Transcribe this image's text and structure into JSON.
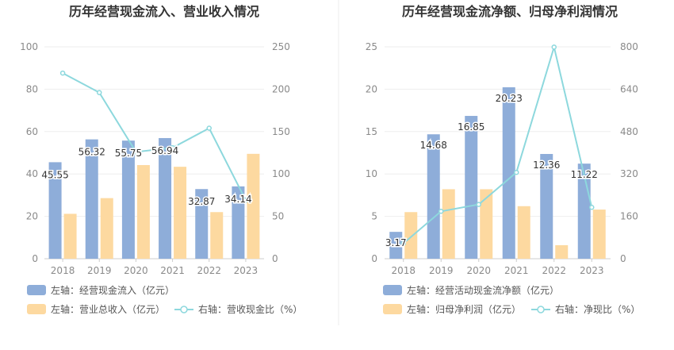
{
  "chart_data": [
    {
      "type": "bar",
      "title": "历年经营现金流入、营业收入情况",
      "categories": [
        "2018",
        "2019",
        "2020",
        "2021",
        "2022",
        "2023"
      ],
      "y_left_ticks": [
        "0",
        "20",
        "40",
        "60",
        "80",
        "100"
      ],
      "y_right_ticks": [
        "0",
        "50",
        "100",
        "150",
        "200",
        "250"
      ],
      "ylim_left": [
        0,
        100
      ],
      "ylim_right": [
        0,
        250
      ],
      "series": [
        {
          "name": "左轴：经营现金流入（亿元）",
          "kind": "bar",
          "axis": "left",
          "color": "#8eadd9",
          "values": [
            45.55,
            56.32,
            55.75,
            56.94,
            32.87,
            34.14
          ],
          "labels": [
            "45.55",
            "56.32",
            "55.75",
            "56.94",
            "32.87",
            "34.14"
          ]
        },
        {
          "name": "左轴：营业总收入（亿元）",
          "kind": "bar",
          "axis": "left",
          "color": "#fdd9a0",
          "values": [
            21.2,
            28.6,
            44.2,
            43.4,
            22.0,
            49.5
          ]
        },
        {
          "name": "右轴：营收现金比（%）",
          "kind": "line",
          "axis": "right",
          "color": "#8dd8dd",
          "values": [
            219,
            196,
            126,
            131,
            154,
            69
          ]
        }
      ],
      "legend_placement": "bottom",
      "grid": true
    },
    {
      "type": "bar",
      "title": "历年经营现金流净额、归母净利润情况",
      "categories": [
        "2018",
        "2019",
        "2020",
        "2021",
        "2022",
        "2023"
      ],
      "y_left_ticks": [
        "0",
        "5",
        "10",
        "15",
        "20",
        "25"
      ],
      "y_right_ticks": [
        "0",
        "160",
        "320",
        "480",
        "640",
        "800"
      ],
      "ylim_left": [
        0,
        25
      ],
      "ylim_right": [
        0,
        800
      ],
      "series": [
        {
          "name": "左轴：经营活动现金流净额（亿元）",
          "kind": "bar",
          "axis": "left",
          "color": "#8eadd9",
          "values": [
            3.17,
            14.68,
            16.85,
            20.23,
            12.36,
            11.22
          ],
          "labels": [
            "3.17",
            "14.68",
            "16.85",
            "20.23",
            "12.36",
            "11.22"
          ]
        },
        {
          "name": "左轴：归母净利润（亿元）",
          "kind": "bar",
          "axis": "left",
          "color": "#fdd9a0",
          "values": [
            5.5,
            8.2,
            8.2,
            6.2,
            1.6,
            5.8
          ]
        },
        {
          "name": "右轴：净现比（%）",
          "kind": "line",
          "axis": "right",
          "color": "#8dd8dd",
          "values": [
            58,
            179,
            205,
            326,
            799,
            194
          ]
        }
      ],
      "legend_placement": "bottom",
      "grid": true
    }
  ]
}
